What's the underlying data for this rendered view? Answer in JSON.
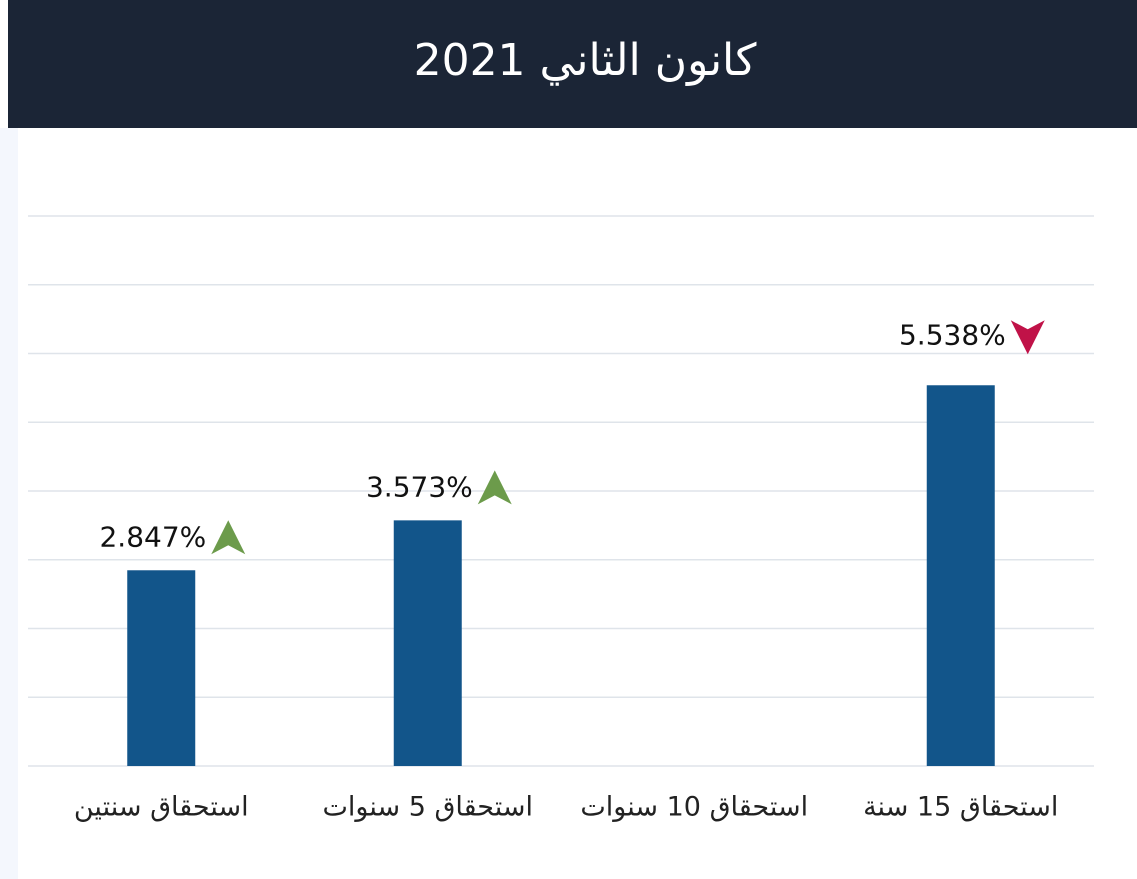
{
  "chart_data": {
    "type": "bar",
    "title": "كانون الثاني 2021",
    "categories": [
      "استحقاق سنتين",
      "استحقاق 5 سنوات",
      "استحقاق 10 سنوات",
      "استحقاق 15 سنة"
    ],
    "values": [
      2.847,
      3.573,
      null,
      5.538
    ],
    "value_labels": [
      "2.847%",
      "3.573%",
      null,
      "5.538%"
    ],
    "trends": [
      "up",
      "up",
      null,
      "down"
    ],
    "trend_colors": {
      "up": "#6c9b4b",
      "down": "#c01248"
    },
    "color": "#12558a",
    "ylim": [
      0,
      8
    ],
    "yticks": [
      0,
      1,
      2,
      3,
      4,
      5,
      6,
      7,
      8
    ],
    "grid": true
  }
}
